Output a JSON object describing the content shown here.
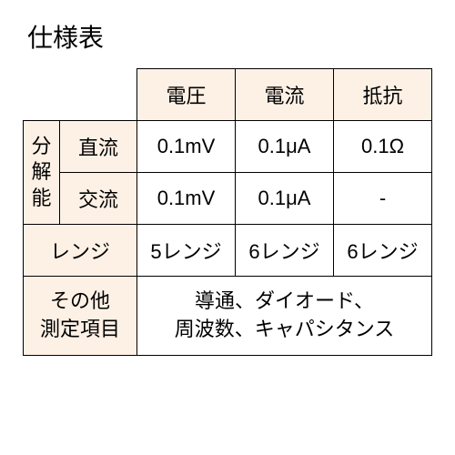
{
  "title": "仕様表",
  "headers": {
    "col1": "電圧",
    "col2": "電流",
    "col3": "抵抗"
  },
  "resolution": {
    "label": "分解能",
    "dc": {
      "label": "直流",
      "voltage": "0.1mV",
      "current": "0.1μA",
      "resistance": "0.1Ω"
    },
    "ac": {
      "label": "交流",
      "voltage": "0.1mV",
      "current": "0.1μA",
      "resistance": "-"
    }
  },
  "range": {
    "label": "レンジ",
    "voltage": "5レンジ",
    "current": "6レンジ",
    "resistance": "6レンジ"
  },
  "other": {
    "label": "その他\n測定項目",
    "value": "導通、ダイオード、\n周波数、キャパシタンス"
  },
  "styling": {
    "header_bg": "#fdf1e6",
    "border_color": "#000000",
    "background": "#ffffff",
    "title_fontsize": 28,
    "cell_fontsize": 22
  }
}
